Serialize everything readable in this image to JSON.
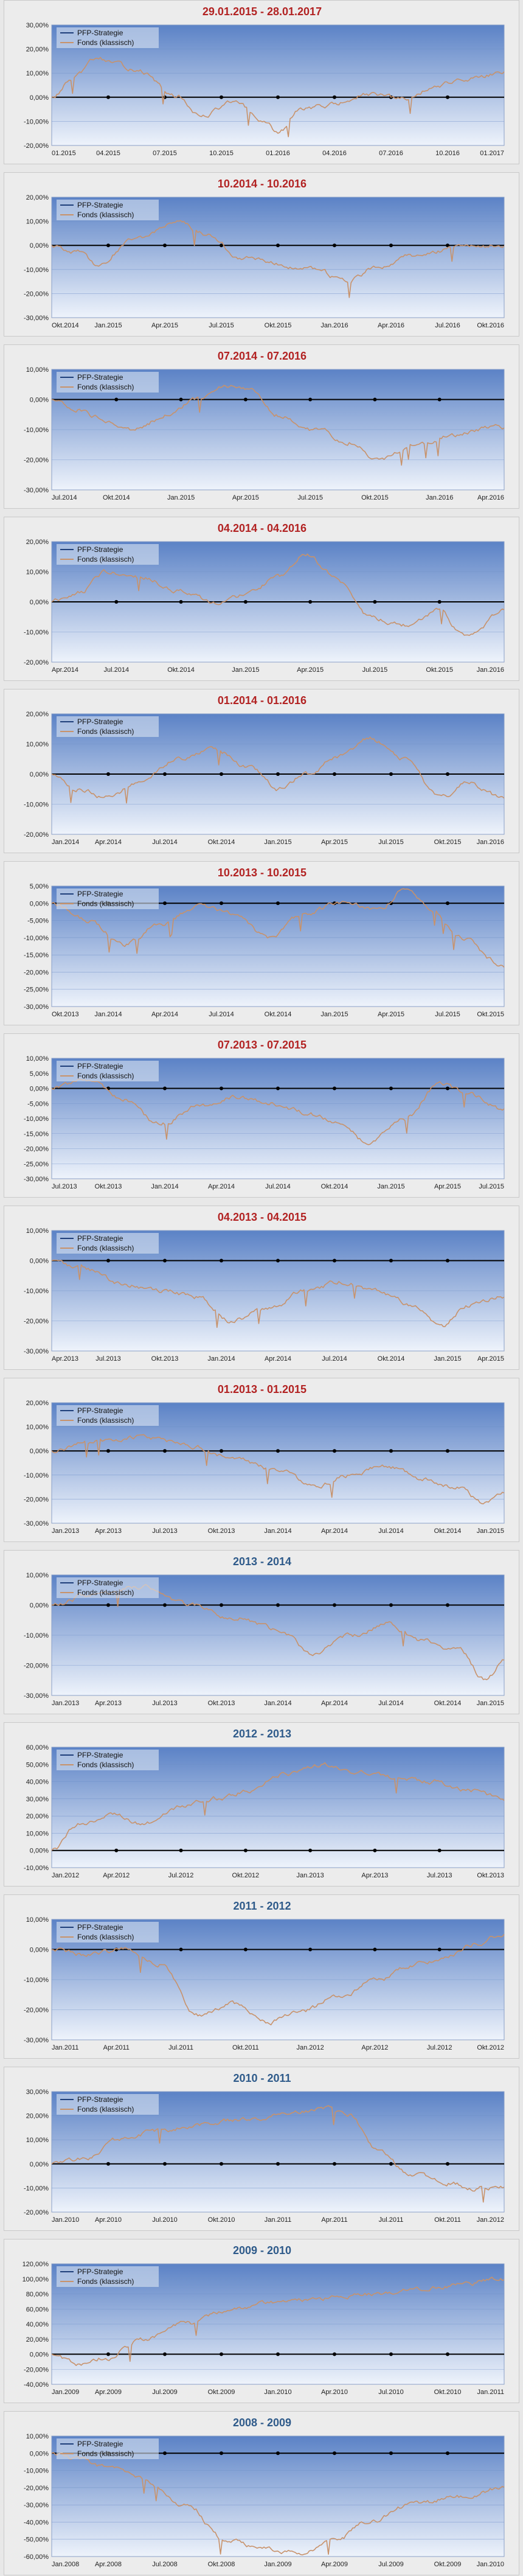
{
  "colors": {
    "title_red": "#b22222",
    "title_blue": "#2e5a8a",
    "strategy_line": "#1f3f7a",
    "fund_line": "#c8926a",
    "zero_line": "#000000"
  },
  "chart_data": [
    {
      "type": "line",
      "title": "29.01.2015 - 28.01.2017",
      "title_color": "red",
      "xticks": [
        "01.2015",
        "04.2015",
        "07.2015",
        "10.2015",
        "01.2016",
        "04.2016",
        "07.2016",
        "10.2016",
        "01.2017"
      ],
      "yticks": [
        "30,00%",
        "20,00%",
        "10,00%",
        "0,00%",
        "-10,00%",
        "-20,00%"
      ],
      "ylim": [
        -20,
        30
      ],
      "legend": [
        "PFP-Strategie",
        "Fonds (klassisch)"
      ],
      "fund_keypoints": [
        [
          0,
          0
        ],
        [
          0.05,
          8
        ],
        [
          0.1,
          16
        ],
        [
          0.18,
          12
        ],
        [
          0.28,
          0
        ],
        [
          0.33,
          -8
        ],
        [
          0.4,
          -2
        ],
        [
          0.47,
          -10
        ],
        [
          0.5,
          -15
        ],
        [
          0.55,
          -5
        ],
        [
          0.62,
          -3
        ],
        [
          0.7,
          1
        ],
        [
          0.78,
          -1
        ],
        [
          0.85,
          5
        ],
        [
          0.93,
          8
        ],
        [
          1,
          10
        ]
      ]
    },
    {
      "type": "line",
      "title": "10.2014 - 10.2016",
      "title_color": "red",
      "xticks": [
        "Okt.2014",
        "Jan.2015",
        "Apr.2015",
        "Jul.2015",
        "Okt.2015",
        "Jan.2016",
        "Apr.2016",
        "Jul.2016",
        "Okt.2016"
      ],
      "yticks": [
        "20,00%",
        "10,00%",
        "0,00%",
        "-10,00%",
        "-20,00%",
        "-30,00%"
      ],
      "ylim": [
        -30,
        20
      ],
      "legend": [
        "PFP-Strategie",
        "Fonds (klassisch)"
      ],
      "fund_keypoints": [
        [
          0,
          0
        ],
        [
          0.06,
          -3
        ],
        [
          0.1,
          -8
        ],
        [
          0.18,
          2
        ],
        [
          0.28,
          10
        ],
        [
          0.34,
          5
        ],
        [
          0.42,
          -5
        ],
        [
          0.5,
          -8
        ],
        [
          0.58,
          -10
        ],
        [
          0.65,
          -15
        ],
        [
          0.72,
          -9
        ],
        [
          0.8,
          -4
        ],
        [
          0.9,
          -1
        ],
        [
          1,
          0
        ]
      ]
    },
    {
      "type": "line",
      "title": "07.2014 - 07.2016",
      "title_color": "red",
      "xticks": [
        "Jul.2014",
        "Okt.2014",
        "Jan.2015",
        "Apr.2015",
        "Jul.2015",
        "Okt.2015",
        "Jan.2016",
        "Apr.2016"
      ],
      "yticks": [
        "10,00%",
        "0,00%",
        "-10,00%",
        "-20,00%",
        "-30,00%"
      ],
      "ylim": [
        -30,
        10
      ],
      "legend": [
        "PFP-Strategie",
        "Fonds (klassisch)"
      ],
      "fund_keypoints": [
        [
          0,
          0
        ],
        [
          0.05,
          -3
        ],
        [
          0.1,
          -6
        ],
        [
          0.18,
          -10
        ],
        [
          0.26,
          -5
        ],
        [
          0.32,
          0
        ],
        [
          0.38,
          5
        ],
        [
          0.44,
          3
        ],
        [
          0.5,
          -5
        ],
        [
          0.58,
          -10
        ],
        [
          0.66,
          -14
        ],
        [
          0.72,
          -20
        ],
        [
          0.8,
          -15
        ],
        [
          0.88,
          -12
        ],
        [
          1,
          -9
        ]
      ]
    },
    {
      "type": "line",
      "title": "04.2014 - 04.2016",
      "title_color": "red",
      "xticks": [
        "Apr.2014",
        "Jul.2014",
        "Okt.2014",
        "Jan.2015",
        "Apr.2015",
        "Jul.2015",
        "Okt.2015",
        "Jan.2016"
      ],
      "yticks": [
        "20,00%",
        "10,00%",
        "0,00%",
        "-10,00%",
        "-20,00%"
      ],
      "ylim": [
        -20,
        20
      ],
      "legend": [
        "PFP-Strategie",
        "Fonds (klassisch)"
      ],
      "fund_keypoints": [
        [
          0,
          0
        ],
        [
          0.06,
          3
        ],
        [
          0.12,
          10
        ],
        [
          0.2,
          8
        ],
        [
          0.28,
          4
        ],
        [
          0.36,
          0
        ],
        [
          0.42,
          2
        ],
        [
          0.5,
          8
        ],
        [
          0.56,
          16
        ],
        [
          0.62,
          9
        ],
        [
          0.7,
          -5
        ],
        [
          0.78,
          -8
        ],
        [
          0.85,
          -3
        ],
        [
          0.92,
          -12
        ],
        [
          1,
          -3
        ]
      ]
    },
    {
      "type": "line",
      "title": "01.2014 - 01.2016",
      "title_color": "red",
      "xticks": [
        "Jan.2014",
        "Apr.2014",
        "Jul.2014",
        "Okt.2014",
        "Jan.2015",
        "Apr.2015",
        "Jul.2015",
        "Okt.2015",
        "Jan.2016"
      ],
      "yticks": [
        "20,00%",
        "10,00%",
        "0,00%",
        "-10,00%",
        "-20,00%"
      ],
      "ylim": [
        -20,
        20
      ],
      "legend": [
        "PFP-Strategie",
        "Fonds (klassisch)"
      ],
      "fund_keypoints": [
        [
          0,
          0
        ],
        [
          0.06,
          -5
        ],
        [
          0.12,
          -8
        ],
        [
          0.2,
          -2
        ],
        [
          0.28,
          5
        ],
        [
          0.36,
          8
        ],
        [
          0.44,
          2
        ],
        [
          0.5,
          -5
        ],
        [
          0.56,
          0
        ],
        [
          0.64,
          6
        ],
        [
          0.7,
          12
        ],
        [
          0.78,
          5
        ],
        [
          0.86,
          -8
        ],
        [
          0.92,
          -3
        ],
        [
          1,
          -8
        ]
      ]
    },
    {
      "type": "line",
      "title": "10.2013 - 10.2015",
      "title_color": "red",
      "xticks": [
        "Okt.2013",
        "Jan.2014",
        "Apr.2014",
        "Jul.2014",
        "Okt.2014",
        "Jan.2015",
        "Apr.2015",
        "Jul.2015",
        "Okt.2015"
      ],
      "yticks": [
        "5,00%",
        "0,00%",
        "-5,00%",
        "-10,00%",
        "-15,00%",
        "-20,00%",
        "-25,00%",
        "-30,00%"
      ],
      "ylim": [
        -30,
        5
      ],
      "legend": [
        "PFP-Strategie",
        "Fonds (klassisch)"
      ],
      "fund_keypoints": [
        [
          0,
          0
        ],
        [
          0.08,
          -5
        ],
        [
          0.16,
          -12
        ],
        [
          0.24,
          -6
        ],
        [
          0.32,
          -1
        ],
        [
          0.4,
          -3
        ],
        [
          0.48,
          -10
        ],
        [
          0.56,
          -3
        ],
        [
          0.64,
          0
        ],
        [
          0.72,
          -2
        ],
        [
          0.78,
          4
        ],
        [
          0.84,
          -2
        ],
        [
          0.9,
          -10
        ],
        [
          1,
          -18
        ]
      ]
    },
    {
      "type": "line",
      "title": "07.2013 - 07.2015",
      "title_color": "red",
      "xticks": [
        "Jul.2013",
        "Okt.2013",
        "Jan.2014",
        "Apr.2014",
        "Jul.2014",
        "Okt.2014",
        "Jan.2015",
        "Apr.2015",
        "Jul.2015"
      ],
      "yticks": [
        "10,00%",
        "5,00%",
        "0,00%",
        "-5,00%",
        "-10,00%",
        "-15,00%",
        "-20,00%",
        "-25,00%",
        "-30,00%"
      ],
      "ylim": [
        -30,
        10
      ],
      "legend": [
        "PFP-Strategie",
        "Fonds (klassisch)"
      ],
      "fund_keypoints": [
        [
          0,
          0
        ],
        [
          0.08,
          3
        ],
        [
          0.16,
          -4
        ],
        [
          0.24,
          -12
        ],
        [
          0.32,
          -6
        ],
        [
          0.4,
          -3
        ],
        [
          0.48,
          -5
        ],
        [
          0.56,
          -8
        ],
        [
          0.64,
          -12
        ],
        [
          0.7,
          -18
        ],
        [
          0.78,
          -10
        ],
        [
          0.86,
          2
        ],
        [
          0.92,
          -2
        ],
        [
          1,
          -7
        ]
      ]
    },
    {
      "type": "line",
      "title": "04.2013 - 04.2015",
      "title_color": "red",
      "xticks": [
        "Apr.2013",
        "Jul.2013",
        "Okt.2013",
        "Jan.2014",
        "Apr.2014",
        "Jul.2014",
        "Okt.2014",
        "Jan.2015",
        "Apr.2015"
      ],
      "yticks": [
        "10,00%",
        "0,00%",
        "-10,00%",
        "-20,00%",
        "-30,00%"
      ],
      "ylim": [
        -30,
        10
      ],
      "legend": [
        "PFP-Strategie",
        "Fonds (klassisch)"
      ],
      "fund_keypoints": [
        [
          0,
          0
        ],
        [
          0.08,
          -3
        ],
        [
          0.16,
          -8
        ],
        [
          0.24,
          -10
        ],
        [
          0.32,
          -12
        ],
        [
          0.4,
          -20
        ],
        [
          0.48,
          -16
        ],
        [
          0.56,
          -10
        ],
        [
          0.64,
          -7
        ],
        [
          0.72,
          -10
        ],
        [
          0.8,
          -15
        ],
        [
          0.86,
          -22
        ],
        [
          0.92,
          -15
        ],
        [
          1,
          -12
        ]
      ]
    },
    {
      "type": "line",
      "title": "01.2013 - 01.2015",
      "title_color": "red",
      "xticks": [
        "Jan.2013",
        "Apr.2013",
        "Jul.2013",
        "Okt.2013",
        "Jan.2014",
        "Apr.2014",
        "Jul.2014",
        "Okt.2014",
        "Jan.2015"
      ],
      "yticks": [
        "20,00%",
        "10,00%",
        "0,00%",
        "-10,00%",
        "-20,00%",
        "-30,00%"
      ],
      "ylim": [
        -30,
        20
      ],
      "legend": [
        "PFP-Strategie",
        "Fonds (klassisch)"
      ],
      "fund_keypoints": [
        [
          0,
          0
        ],
        [
          0.1,
          4
        ],
        [
          0.2,
          6
        ],
        [
          0.3,
          2
        ],
        [
          0.4,
          -3
        ],
        [
          0.5,
          -8
        ],
        [
          0.58,
          -15
        ],
        [
          0.66,
          -10
        ],
        [
          0.74,
          -6
        ],
        [
          0.82,
          -12
        ],
        [
          0.9,
          -15
        ],
        [
          0.96,
          -22
        ],
        [
          1,
          -18
        ]
      ]
    },
    {
      "type": "line",
      "title": "2013 - 2014",
      "title_color": "blue",
      "xticks": [
        "Jan.2013",
        "Apr.2013",
        "Jul.2013",
        "Okt.2013",
        "Jan.2014",
        "Apr.2014",
        "Jul.2014",
        "Okt.2014",
        "Jan.2015"
      ],
      "yticks": [
        "10,00%",
        "0,00%",
        "-10,00%",
        "-20,00%",
        "-30,00%"
      ],
      "ylim": [
        -30,
        10
      ],
      "legend": [
        "PFP-Strategie",
        "Fonds (klassisch)"
      ],
      "fund_keypoints": [
        [
          0,
          0
        ],
        [
          0.1,
          4
        ],
        [
          0.2,
          6
        ],
        [
          0.3,
          0
        ],
        [
          0.4,
          -4
        ],
        [
          0.5,
          -8
        ],
        [
          0.58,
          -16
        ],
        [
          0.66,
          -10
        ],
        [
          0.74,
          -6
        ],
        [
          0.82,
          -12
        ],
        [
          0.9,
          -15
        ],
        [
          0.96,
          -25
        ],
        [
          1,
          -18
        ]
      ]
    },
    {
      "type": "line",
      "title": "2012 - 2013",
      "title_color": "blue",
      "xticks": [
        "Jan.2012",
        "Apr.2012",
        "Jul.2012",
        "Okt.2012",
        "Jan.2013",
        "Apr.2013",
        "Jul.2013",
        "Okt.2013"
      ],
      "yticks": [
        "60,00%",
        "50,00%",
        "40,00%",
        "30,00%",
        "20,00%",
        "10,00%",
        "0,00%",
        "-10,00%"
      ],
      "ylim": [
        -10,
        60
      ],
      "legend": [
        "PFP-Strategie",
        "Fonds (klassisch)"
      ],
      "fund_keypoints": [
        [
          0,
          0
        ],
        [
          0.06,
          15
        ],
        [
          0.14,
          22
        ],
        [
          0.2,
          15
        ],
        [
          0.28,
          25
        ],
        [
          0.36,
          30
        ],
        [
          0.44,
          35
        ],
        [
          0.52,
          45
        ],
        [
          0.6,
          50
        ],
        [
          0.68,
          45
        ],
        [
          0.76,
          42
        ],
        [
          0.84,
          40
        ],
        [
          0.92,
          35
        ],
        [
          1,
          30
        ]
      ]
    },
    {
      "type": "line",
      "title": "2011 - 2012",
      "title_color": "blue",
      "xticks": [
        "Jan.2011",
        "Apr.2011",
        "Jul.2011",
        "Okt.2011",
        "Jan.2012",
        "Apr.2012",
        "Jul.2012",
        "Okt.2012"
      ],
      "yticks": [
        "10,00%",
        "0,00%",
        "-10,00%",
        "-20,00%",
        "-30,00%"
      ],
      "ylim": [
        -30,
        10
      ],
      "legend": [
        "PFP-Strategie",
        "Fonds (klassisch)"
      ],
      "fund_keypoints": [
        [
          0,
          0
        ],
        [
          0.08,
          -2
        ],
        [
          0.16,
          0
        ],
        [
          0.24,
          -5
        ],
        [
          0.32,
          -22
        ],
        [
          0.4,
          -18
        ],
        [
          0.48,
          -24
        ],
        [
          0.56,
          -20
        ],
        [
          0.64,
          -15
        ],
        [
          0.72,
          -10
        ],
        [
          0.8,
          -5
        ],
        [
          0.88,
          -2
        ],
        [
          0.94,
          2
        ],
        [
          1,
          5
        ]
      ]
    },
    {
      "type": "line",
      "title": "2010 - 2011",
      "title_color": "blue",
      "xticks": [
        "Jan.2010",
        "Apr.2010",
        "Jul.2010",
        "Okt.2010",
        "Jan.2011",
        "Apr.2011",
        "Jul.2011",
        "Okt.2011",
        "Jan.2012"
      ],
      "yticks": [
        "30,00%",
        "20,00%",
        "10,00%",
        "0,00%",
        "-10,00%",
        "-20,00%"
      ],
      "ylim": [
        -20,
        30
      ],
      "legend": [
        "PFP-Strategie",
        "Fonds (klassisch)"
      ],
      "fund_keypoints": [
        [
          0,
          0
        ],
        [
          0.08,
          2
        ],
        [
          0.14,
          10
        ],
        [
          0.22,
          13
        ],
        [
          0.3,
          15
        ],
        [
          0.4,
          18
        ],
        [
          0.5,
          20
        ],
        [
          0.6,
          23
        ],
        [
          0.66,
          20
        ],
        [
          0.72,
          5
        ],
        [
          0.8,
          -5
        ],
        [
          0.88,
          -8
        ],
        [
          0.94,
          -10
        ],
        [
          1,
          -10
        ]
      ]
    },
    {
      "type": "line",
      "title": "2009 - 2010",
      "title_color": "blue",
      "xticks": [
        "Jan.2009",
        "Apr.2009",
        "Jul.2009",
        "Okt.2009",
        "Jan.2010",
        "Apr.2010",
        "Jul.2010",
        "Okt.2010",
        "Jan.2011"
      ],
      "yticks": [
        "120,00%",
        "100,00%",
        "80,00%",
        "60,00%",
        "40,00%",
        "20,00%",
        "0,00%",
        "-20,00%",
        "-40,00%"
      ],
      "ylim": [
        -40,
        120
      ],
      "legend": [
        "PFP-Strategie",
        "Fonds (klassisch)"
      ],
      "fund_keypoints": [
        [
          0,
          0
        ],
        [
          0.06,
          -15
        ],
        [
          0.12,
          -5
        ],
        [
          0.2,
          20
        ],
        [
          0.3,
          40
        ],
        [
          0.4,
          60
        ],
        [
          0.5,
          70
        ],
        [
          0.6,
          75
        ],
        [
          0.7,
          80
        ],
        [
          0.8,
          85
        ],
        [
          0.9,
          92
        ],
        [
          1,
          100
        ]
      ]
    },
    {
      "type": "line",
      "title": "2008 - 2009",
      "title_color": "blue",
      "xticks": [
        "Jan.2008",
        "Apr.2008",
        "Jul.2008",
        "Okt.2008",
        "Jan.2009",
        "Apr.2009",
        "Jul.2009",
        "Okt.2009",
        "Jan.2010"
      ],
      "yticks": [
        "10,00%",
        "0,00%",
        "-10,00%",
        "-20,00%",
        "-30,00%",
        "-40,00%",
        "-50,00%",
        "-60,00%"
      ],
      "ylim": [
        -60,
        10
      ],
      "legend": [
        "PFP-Strategie",
        "Fonds (klassisch)"
      ],
      "fund_keypoints": [
        [
          0,
          0
        ],
        [
          0.05,
          -3
        ],
        [
          0.12,
          -8
        ],
        [
          0.2,
          -15
        ],
        [
          0.3,
          -30
        ],
        [
          0.38,
          -50
        ],
        [
          0.46,
          -55
        ],
        [
          0.54,
          -58
        ],
        [
          0.62,
          -52
        ],
        [
          0.7,
          -40
        ],
        [
          0.8,
          -30
        ],
        [
          0.9,
          -25
        ],
        [
          1,
          -20
        ]
      ]
    }
  ]
}
